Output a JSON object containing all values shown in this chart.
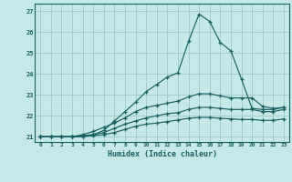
{
  "title": "",
  "xlabel": "Humidex (Indice chaleur)",
  "ylabel": "",
  "bg_color": "#c5e8e8",
  "grid_color": "#9fc8c8",
  "line_color": "#1a6060",
  "xlim": [
    -0.5,
    23.5
  ],
  "ylim": [
    20.75,
    27.35
  ],
  "yticks": [
    21,
    22,
    23,
    24,
    25,
    26,
    27
  ],
  "xticks": [
    0,
    1,
    2,
    3,
    4,
    5,
    6,
    7,
    8,
    9,
    10,
    11,
    12,
    13,
    14,
    15,
    16,
    17,
    18,
    19,
    20,
    21,
    22,
    23
  ],
  "series": [
    [
      21.0,
      21.0,
      21.0,
      21.0,
      21.0,
      21.1,
      21.3,
      21.75,
      22.2,
      22.65,
      23.15,
      23.5,
      23.85,
      24.05,
      25.55,
      26.85,
      26.5,
      25.5,
      25.1,
      23.75,
      22.35,
      22.3,
      22.3,
      22.4
    ],
    [
      21.0,
      21.0,
      21.0,
      21.0,
      21.1,
      21.25,
      21.45,
      21.65,
      21.9,
      22.2,
      22.4,
      22.5,
      22.6,
      22.7,
      22.9,
      23.05,
      23.05,
      22.95,
      22.85,
      22.85,
      22.85,
      22.45,
      22.35,
      22.4
    ],
    [
      21.0,
      21.0,
      21.0,
      21.0,
      21.05,
      21.1,
      21.2,
      21.4,
      21.6,
      21.75,
      21.9,
      22.0,
      22.1,
      22.15,
      22.3,
      22.4,
      22.4,
      22.35,
      22.3,
      22.3,
      22.3,
      22.2,
      22.2,
      22.3
    ],
    [
      21.0,
      21.0,
      21.0,
      21.0,
      21.02,
      21.05,
      21.1,
      21.2,
      21.35,
      21.5,
      21.6,
      21.65,
      21.72,
      21.8,
      21.88,
      21.92,
      21.92,
      21.88,
      21.85,
      21.82,
      21.82,
      21.78,
      21.78,
      21.85
    ]
  ]
}
